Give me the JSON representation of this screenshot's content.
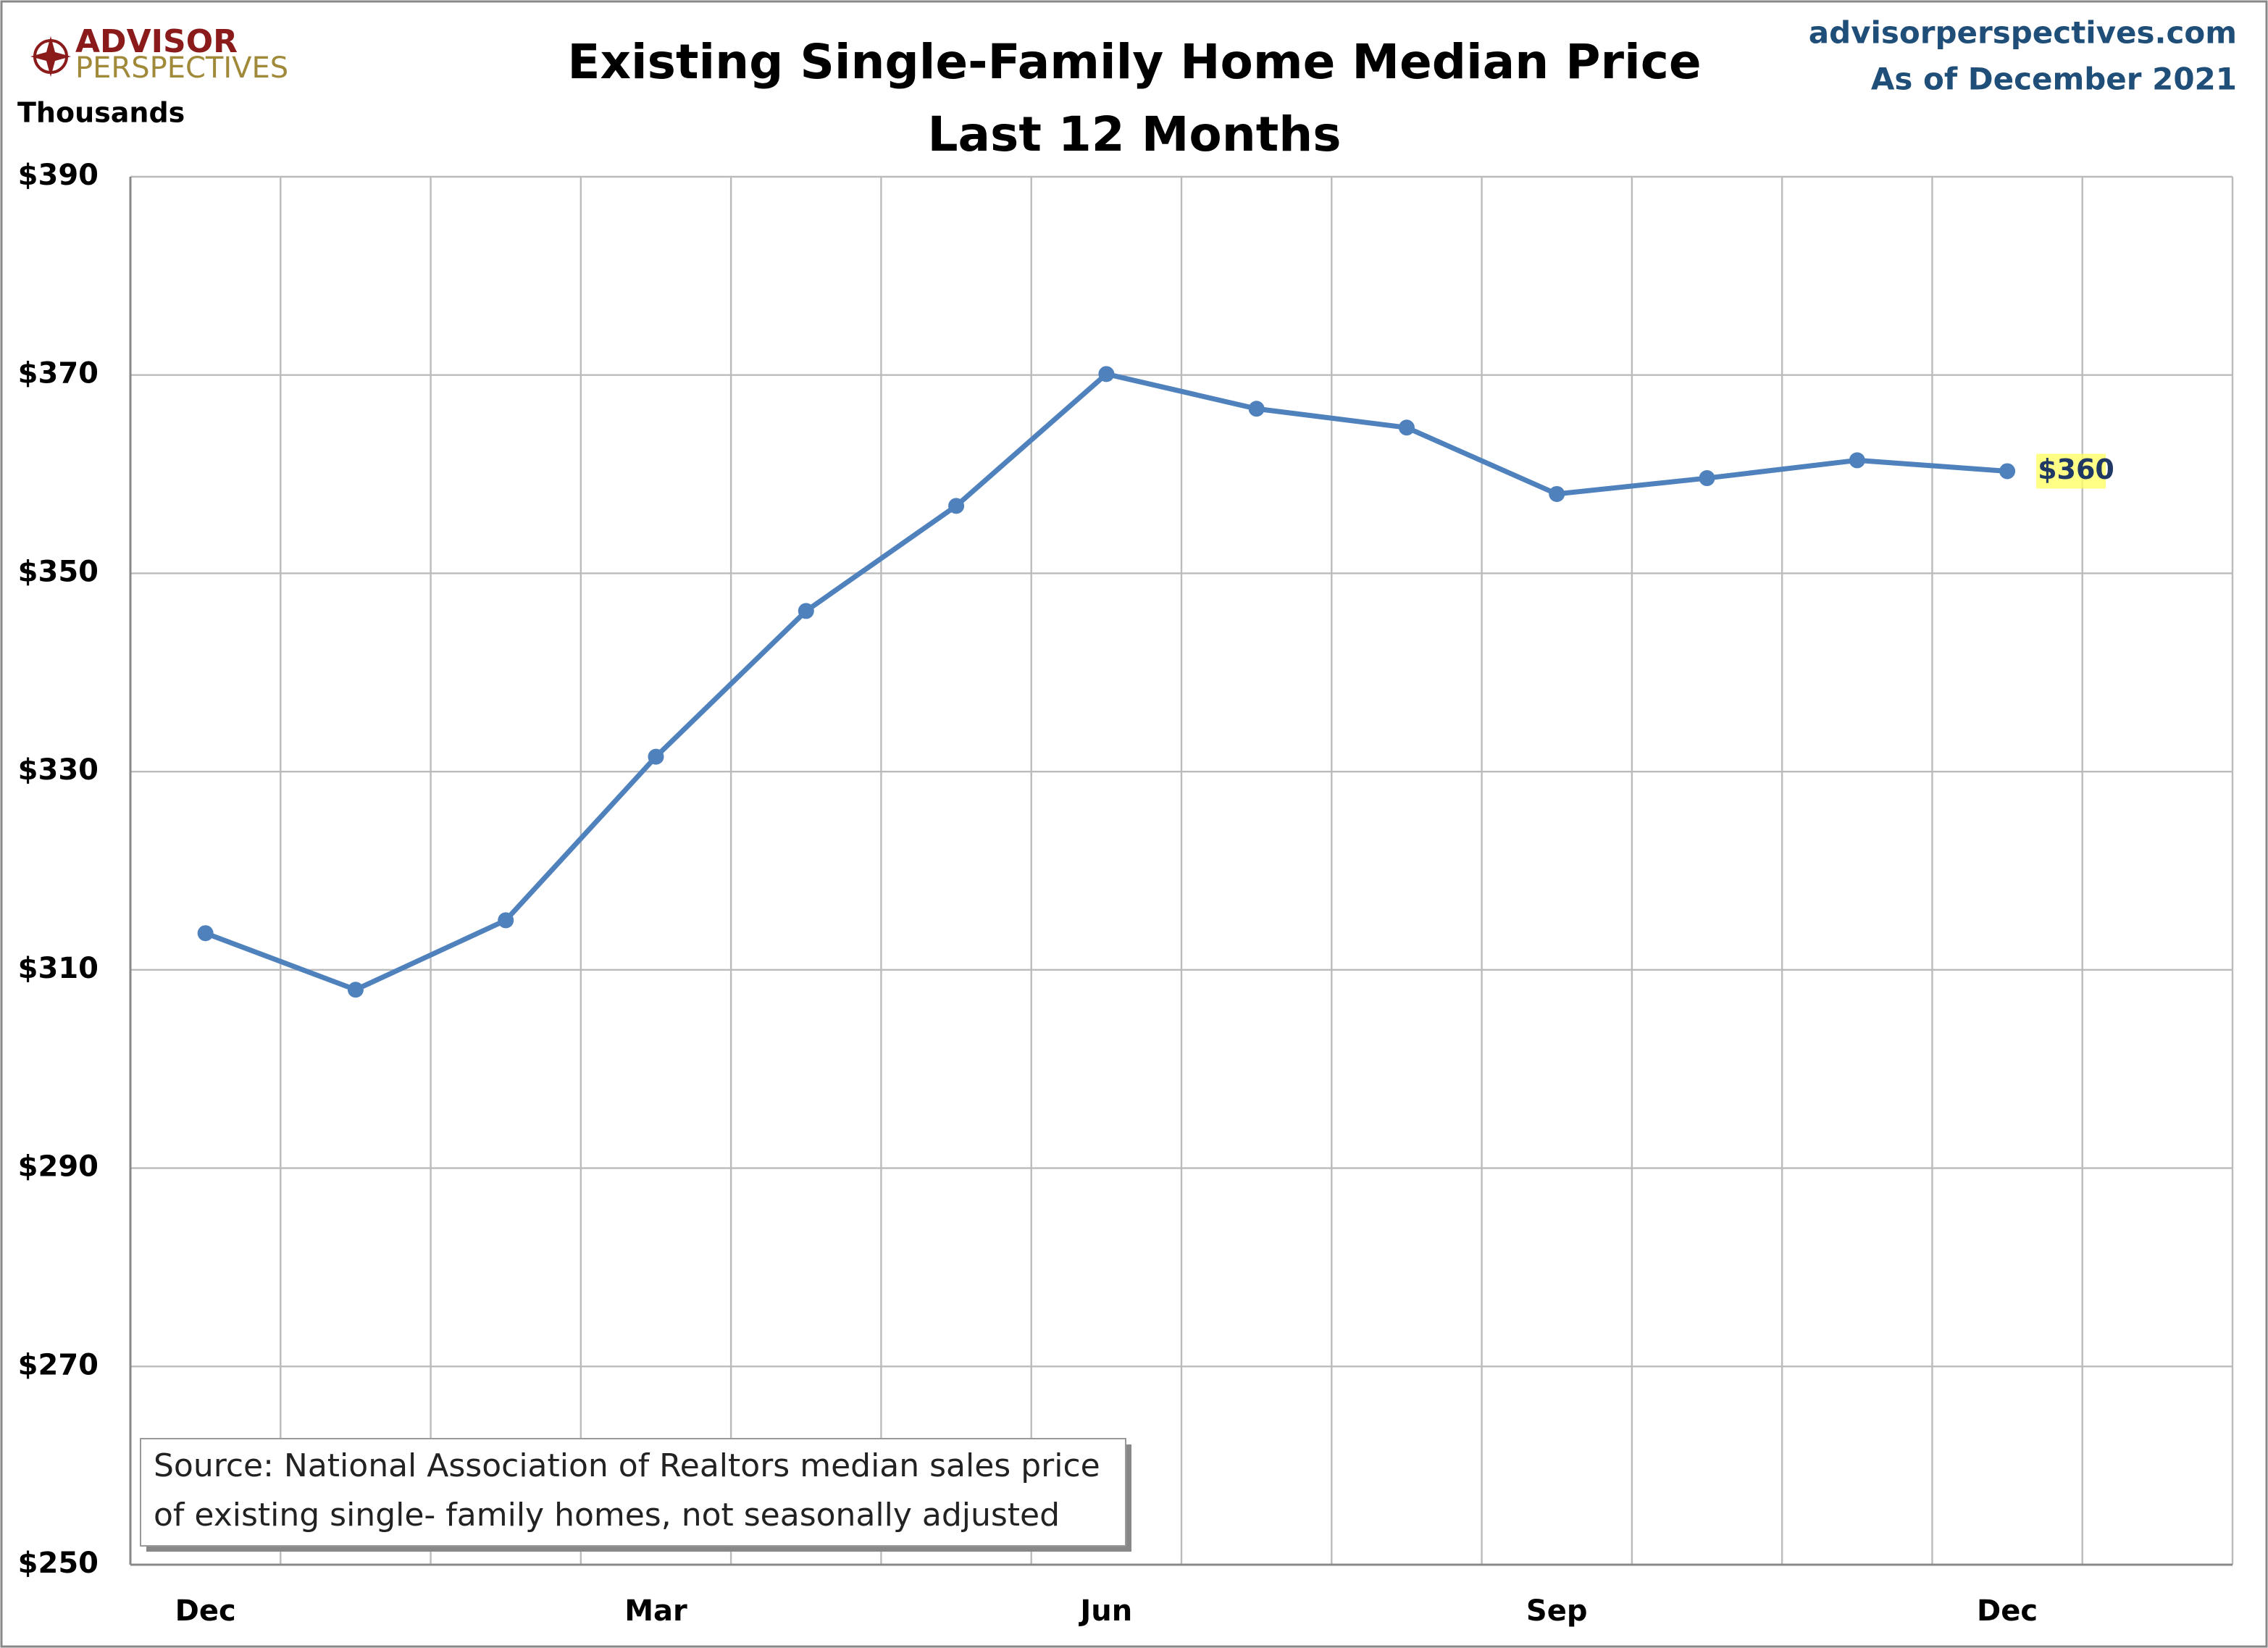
{
  "chart_data": {
    "type": "line",
    "title": "Existing Single-Family Home Median Price",
    "subtitle": "Last 12 Months",
    "logo": [
      "ADVISOR",
      "PERSPECTIVES"
    ],
    "website": "advisorperspectives.com",
    "date_note": "As of December 2021",
    "y_axis_label": "Thousands",
    "note": [
      "Source: National Association of Realtors median sales price",
      "of existing single- family homes, not seasonally adjusted"
    ],
    "categories": [
      "Dec",
      null,
      null,
      "Mar",
      null,
      null,
      "Jun",
      null,
      null,
      "Sep",
      null,
      null,
      "Dec"
    ],
    "series": [
      {
        "name": "Median Price",
        "color": "#4f81bd",
        "values": [
          313.7,
          308.0,
          315.0,
          331.5,
          346.2,
          356.8,
          370.1,
          366.6,
          364.7,
          358.0,
          359.6,
          361.4,
          360.3
        ],
        "value_labels": [
          null,
          null,
          null,
          null,
          null,
          null,
          null,
          null,
          null,
          null,
          null,
          null,
          "$360"
        ]
      }
    ],
    "ylim": [
      250,
      390
    ],
    "yticks": [
      {
        "value": 250,
        "label": "$250"
      },
      {
        "value": 270,
        "label": "$270"
      },
      {
        "value": 290,
        "label": "$290"
      },
      {
        "value": 310,
        "label": "$310"
      },
      {
        "value": 330,
        "label": "$330"
      },
      {
        "value": 350,
        "label": "$350"
      },
      {
        "value": 370,
        "label": "$370"
      },
      {
        "value": 390,
        "label": "$390"
      }
    ],
    "grid": true
  }
}
